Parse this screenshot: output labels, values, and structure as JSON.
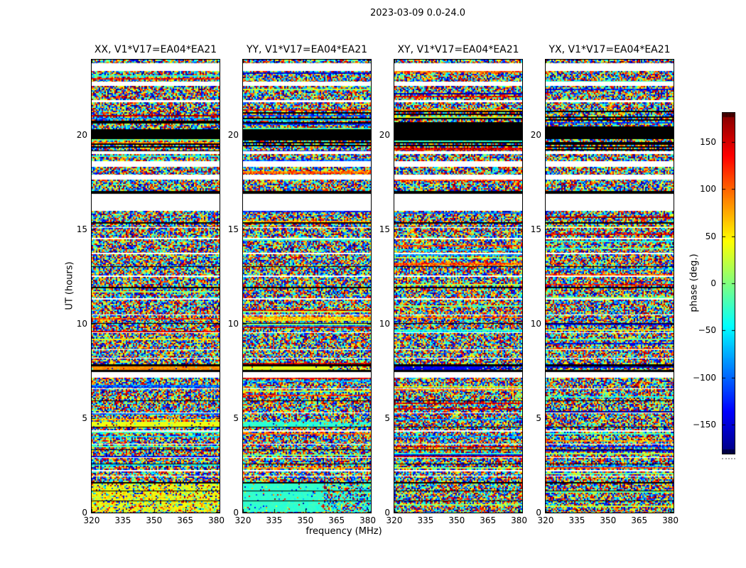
{
  "chart_data": {
    "type": "heatmap",
    "title": "2023-03-09 0.0-24.0",
    "xlabel": "frequency (MHz)",
    "ylabel": "UT (hours)",
    "x_range": [
      320,
      381.5
    ],
    "y_range": [
      0,
      24
    ],
    "x_ticks": [
      320,
      335,
      350,
      365,
      380
    ],
    "y_ticks": [
      0,
      5,
      10,
      15,
      20
    ],
    "grid": false,
    "panels": [
      {
        "id": "XX",
        "title": "XX, V1*V17=EA04*EA21"
      },
      {
        "id": "YY",
        "title": "YY, V1*V17=EA04*EA21"
      },
      {
        "id": "XY",
        "title": "XY, V1*V17=EA04*EA21"
      },
      {
        "id": "YX",
        "title": "YX, V1*V17=EA04*EA21"
      }
    ],
    "colorbar": {
      "label": "phase (deg.)",
      "ticks": [
        150,
        100,
        50,
        0,
        -50,
        -100,
        -150
      ],
      "range": [
        -181,
        181
      ],
      "colormap": "jet"
    },
    "bands": [
      {
        "from": 24.0,
        "to": 23.8,
        "style": "noise"
      },
      {
        "from": 23.8,
        "to": 23.4,
        "style": "white"
      },
      {
        "from": 23.4,
        "to": 22.85,
        "style": "noise"
      },
      {
        "from": 22.85,
        "to": 22.6,
        "style": "white"
      },
      {
        "from": 22.6,
        "to": 21.85,
        "style": "noise"
      },
      {
        "from": 21.85,
        "to": 21.75,
        "style": "white"
      },
      {
        "from": 21.75,
        "to": 21.3,
        "style": "noise"
      },
      {
        "from": 21.3,
        "to": 20.3,
        "style": "striped"
      },
      {
        "from": 20.3,
        "to": 19.8,
        "style": "black"
      },
      {
        "from": 19.8,
        "to": 19.15,
        "style": "striped"
      },
      {
        "from": 19.15,
        "to": 19.0,
        "style": "white"
      },
      {
        "from": 19.0,
        "to": 18.62,
        "style": "noise"
      },
      {
        "from": 18.62,
        "to": 18.32,
        "style": "white"
      },
      {
        "from": 18.32,
        "to": 17.9,
        "style": "noise"
      },
      {
        "from": 17.9,
        "to": 17.66,
        "style": "white"
      },
      {
        "from": 17.66,
        "to": 17.05,
        "style": "noise"
      },
      {
        "from": 17.05,
        "to": 16.88,
        "style": "black"
      },
      {
        "from": 16.88,
        "to": 16.0,
        "style": "white"
      },
      {
        "from": 16.0,
        "to": 15.4,
        "style": "noise"
      },
      {
        "from": 15.4,
        "to": 15.3,
        "style": "black"
      },
      {
        "from": 15.3,
        "to": 15.12,
        "style": "noise"
      },
      {
        "from": 15.12,
        "to": 15.07,
        "style": "white"
      },
      {
        "from": 15.07,
        "to": 14.55,
        "style": "noise"
      },
      {
        "from": 14.55,
        "to": 14.5,
        "style": "white"
      },
      {
        "from": 14.5,
        "to": 13.75,
        "style": "noise"
      },
      {
        "from": 13.75,
        "to": 13.7,
        "style": "white"
      },
      {
        "from": 13.7,
        "to": 13.05,
        "style": "noise"
      },
      {
        "from": 13.05,
        "to": 13.0,
        "style": "black"
      },
      {
        "from": 13.0,
        "to": 12.55,
        "style": "noise"
      },
      {
        "from": 12.55,
        "to": 12.5,
        "style": "white"
      },
      {
        "from": 12.5,
        "to": 11.95,
        "style": "noise"
      },
      {
        "from": 11.95,
        "to": 11.9,
        "style": "black"
      },
      {
        "from": 11.9,
        "to": 11.35,
        "style": "noise"
      },
      {
        "from": 11.35,
        "to": 11.3,
        "style": "white"
      },
      {
        "from": 11.3,
        "to": 10.5,
        "style": "noise"
      },
      {
        "from": 10.5,
        "to": 10.45,
        "style": "white"
      },
      {
        "from": 10.45,
        "to": 10.05,
        "style": "noise"
      },
      {
        "from": 10.05,
        "to": 10.0,
        "style": "black"
      },
      {
        "from": 10.0,
        "to": 9.55,
        "style": "noise"
      },
      {
        "from": 9.55,
        "to": 9.5,
        "style": "white"
      },
      {
        "from": 9.5,
        "to": 8.65,
        "style": "noise"
      },
      {
        "from": 8.65,
        "to": 8.6,
        "style": "white"
      },
      {
        "from": 8.6,
        "to": 8.2,
        "style": "noise"
      },
      {
        "from": 8.2,
        "to": 8.15,
        "style": "white"
      },
      {
        "from": 8.15,
        "to": 7.87,
        "style": "noise"
      },
      {
        "from": 7.87,
        "to": 7.76,
        "style": "black"
      },
      {
        "from": 7.76,
        "to": 7.55,
        "style": "noise",
        "overrides": {
          "XX": {
            "phase": 85,
            "spread": 12,
            "outlier": 0.08
          },
          "YY": {
            "phase": 36,
            "spread": 10,
            "outlier": 0.08,
            "noisy_right": 0.65
          },
          "XY": {
            "phase": -140,
            "spread": 14,
            "outlier": 0.1,
            "noisy_right": 0.68
          }
        }
      },
      {
        "from": 7.55,
        "to": 7.44,
        "style": "black"
      },
      {
        "from": 7.44,
        "to": 7.14,
        "style": "white"
      },
      {
        "from": 7.14,
        "to": 6.6,
        "style": "noise"
      },
      {
        "from": 6.6,
        "to": 6.55,
        "style": "white"
      },
      {
        "from": 6.55,
        "to": 5.95,
        "style": "noise"
      },
      {
        "from": 5.95,
        "to": 5.9,
        "style": "black"
      },
      {
        "from": 5.9,
        "to": 5.3,
        "style": "noise"
      },
      {
        "from": 5.3,
        "to": 5.25,
        "style": "white"
      },
      {
        "from": 5.25,
        "to": 4.8,
        "style": "noise"
      },
      {
        "from": 4.8,
        "to": 4.55,
        "style": "noise",
        "overrides": {
          "XX": {
            "phase": 38,
            "spread": 10,
            "outlier": 0.1
          },
          "YY": {
            "phase": -30,
            "spread": 8,
            "outlier": 0.08,
            "noisy_right": 0.75
          }
        }
      },
      {
        "from": 4.55,
        "to": 4.5,
        "style": "black"
      },
      {
        "from": 4.5,
        "to": 4.35,
        "style": "noise"
      },
      {
        "from": 4.35,
        "to": 4.3,
        "style": "white"
      },
      {
        "from": 4.3,
        "to": 3.65,
        "style": "noise"
      },
      {
        "from": 3.65,
        "to": 3.6,
        "style": "white"
      },
      {
        "from": 3.6,
        "to": 3.35,
        "style": "noise"
      },
      {
        "from": 3.35,
        "to": 3.3,
        "style": "black"
      },
      {
        "from": 3.3,
        "to": 2.95,
        "style": "noise"
      },
      {
        "from": 2.95,
        "to": 2.9,
        "style": "white"
      },
      {
        "from": 2.9,
        "to": 2.6,
        "style": "noise"
      },
      {
        "from": 2.6,
        "to": 2.55,
        "style": "black"
      },
      {
        "from": 2.55,
        "to": 2.25,
        "style": "noise"
      },
      {
        "from": 2.25,
        "to": 2.2,
        "style": "white"
      },
      {
        "from": 2.2,
        "to": 1.95,
        "style": "noise"
      },
      {
        "from": 1.95,
        "to": 1.9,
        "style": "white"
      },
      {
        "from": 1.9,
        "to": 1.6,
        "style": "noise"
      },
      {
        "from": 1.6,
        "to": 1.55,
        "style": "black"
      },
      {
        "from": 1.55,
        "to": 1.17,
        "style": "noise",
        "overrides": {
          "XX": {
            "phase": 40,
            "spread": 35,
            "outlier": 0.35
          },
          "YY": {
            "phase": -28,
            "spread": 8,
            "outlier": 0.08,
            "noisy_right": 0.62
          }
        }
      },
      {
        "from": 1.17,
        "to": 1.13,
        "style": "black"
      },
      {
        "from": 1.13,
        "to": 0.65,
        "style": "noise",
        "overrides": {
          "XX": {
            "phase": 40,
            "spread": 35,
            "outlier": 0.35
          },
          "YY": {
            "phase": -28,
            "spread": 8,
            "outlier": 0.08,
            "noisy_right": 0.62
          }
        }
      },
      {
        "from": 0.65,
        "to": 0.61,
        "style": "black"
      },
      {
        "from": 0.61,
        "to": 0.05,
        "style": "noise",
        "overrides": {
          "XX": {
            "phase": 40,
            "spread": 35,
            "outlier": 0.35
          },
          "YY": {
            "phase": -28,
            "spread": 8,
            "outlier": 0.08,
            "noisy_right": 0.62
          }
        }
      },
      {
        "from": 0.05,
        "to": 0.0,
        "style": "noise"
      }
    ]
  }
}
